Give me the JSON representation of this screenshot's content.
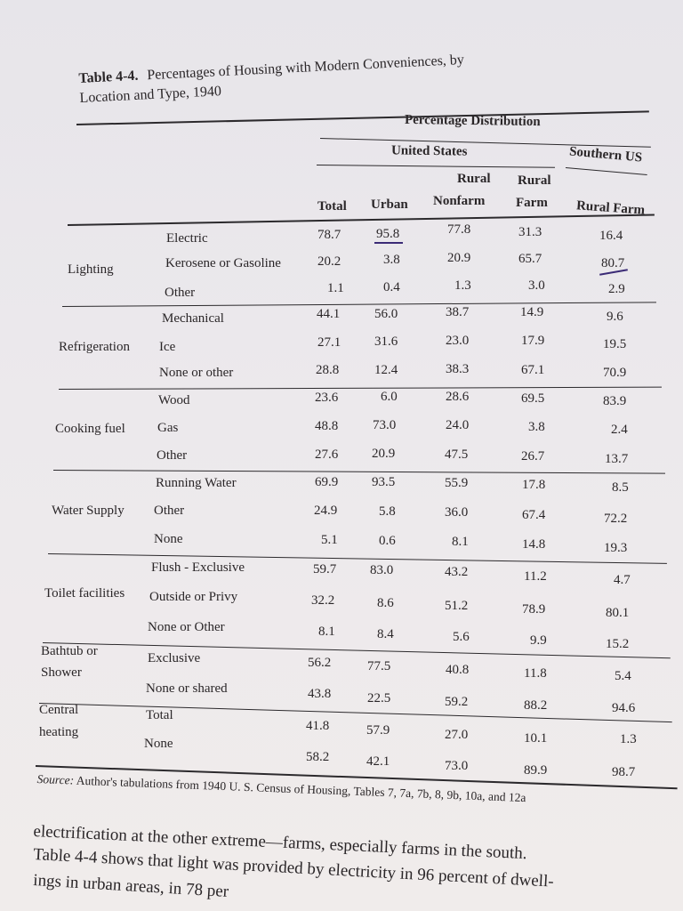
{
  "caption": {
    "number": "Table 4-4.",
    "title_line1": "Percentages of Housing with Modern Conveniences, by",
    "title_line2": "Location and Type, 1940"
  },
  "headers": {
    "percentage_distribution": "Percentage Distribution",
    "united_states": "United States",
    "southern_us": "Southern US",
    "total": "Total",
    "urban": "Urban",
    "rural_nonfarm_1": "Rural",
    "rural_nonfarm_2": "Nonfarm",
    "rural_farm_1": "Rural",
    "rural_farm_2": "Farm",
    "southern_rural_farm": "Rural Farm"
  },
  "groups": [
    {
      "name": "Lighting",
      "rows": [
        {
          "label": "Electric",
          "values": [
            "78.7",
            "95.8",
            "77.8",
            "31.3",
            "16.4"
          ]
        },
        {
          "label": "Kerosene or Gasoline",
          "values": [
            "20.2",
            "3.8",
            "20.9",
            "65.7",
            "80.7"
          ]
        },
        {
          "label": "Other",
          "values": [
            "1.1",
            "0.4",
            "1.3",
            "3.0",
            "2.9"
          ]
        }
      ]
    },
    {
      "name": "Refrigeration",
      "rows": [
        {
          "label": "Mechanical",
          "values": [
            "44.1",
            "56.0",
            "38.7",
            "14.9",
            "9.6"
          ]
        },
        {
          "label": "Ice",
          "values": [
            "27.1",
            "31.6",
            "23.0",
            "17.9",
            "19.5"
          ]
        },
        {
          "label": "None or other",
          "values": [
            "28.8",
            "12.4",
            "38.3",
            "67.1",
            "70.9"
          ]
        }
      ]
    },
    {
      "name": "Cooking fuel",
      "rows": [
        {
          "label": "Wood",
          "values": [
            "23.6",
            "6.0",
            "28.6",
            "69.5",
            "83.9"
          ]
        },
        {
          "label": "Gas",
          "values": [
            "48.8",
            "73.0",
            "24.0",
            "3.8",
            "2.4"
          ]
        },
        {
          "label": "Other",
          "values": [
            "27.6",
            "20.9",
            "47.5",
            "26.7",
            "13.7"
          ]
        }
      ]
    },
    {
      "name": "Water Supply",
      "rows": [
        {
          "label": "Running Water",
          "values": [
            "69.9",
            "93.5",
            "55.9",
            "17.8",
            "8.5"
          ]
        },
        {
          "label": "Other",
          "values": [
            "24.9",
            "5.8",
            "36.0",
            "67.4",
            "72.2"
          ]
        },
        {
          "label": "None",
          "values": [
            "5.1",
            "0.6",
            "8.1",
            "14.8",
            "19.3"
          ]
        }
      ]
    },
    {
      "name": "Toilet facilities",
      "rows": [
        {
          "label": "Flush - Exclusive",
          "values": [
            "59.7",
            "83.0",
            "43.2",
            "11.2",
            "4.7"
          ]
        },
        {
          "label": "Outside or Privy",
          "values": [
            "32.2",
            "8.6",
            "51.2",
            "78.9",
            "80.1"
          ]
        },
        {
          "label": "None or Other",
          "values": [
            "8.1",
            "8.4",
            "5.6",
            "9.9",
            "15.2"
          ]
        }
      ]
    },
    {
      "name": "Bathtub or Shower",
      "name_line1": "Bathtub or",
      "name_line2": "Shower",
      "rows": [
        {
          "label": "Exclusive",
          "values": [
            "56.2",
            "77.5",
            "40.8",
            "11.8",
            "5.4"
          ]
        },
        {
          "label": "None or shared",
          "values": [
            "43.8",
            "22.5",
            "59.2",
            "88.2",
            "94.6"
          ]
        }
      ]
    },
    {
      "name": "Central heating",
      "name_line1": "Central",
      "name_line2": "heating",
      "rows": [
        {
          "label": "Total",
          "values": [
            "41.8",
            "57.9",
            "27.0",
            "10.1",
            "1.3"
          ]
        },
        {
          "label": "None",
          "values": [
            "58.2",
            "42.1",
            "73.0",
            "89.9",
            "98.7"
          ]
        }
      ]
    }
  ],
  "source": {
    "label": "Source:",
    "text": "Author's tabulations from 1940 U. S. Census of Housing, Tables 7, 7a, 7b, 8, 9b, 10a, and 12a"
  },
  "body_text": [
    "electrification at the other extreme—farms, especially farms in the south.",
    "Table 4-4 shows that light was provided by electricity in 96 percent of dwell-",
    "ings in urban areas, in 78 per"
  ],
  "colors": {
    "annotation_ink": "#3b2b76",
    "ink": "#2a2628"
  }
}
